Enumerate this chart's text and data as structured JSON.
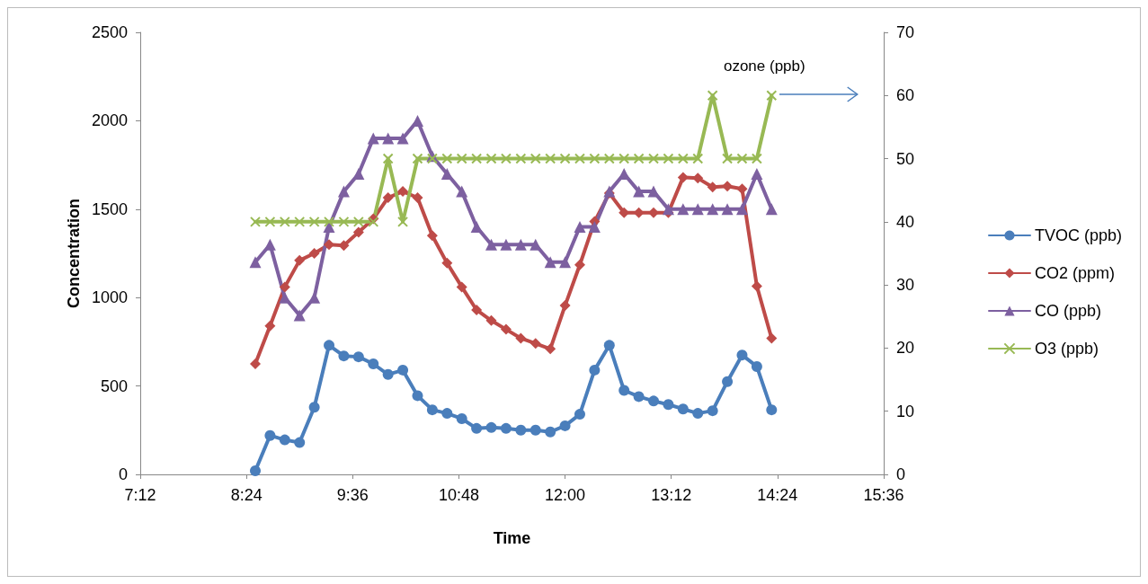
{
  "chart_data": {
    "type": "line",
    "xlabel": "Time",
    "ylabel": "Concentration",
    "x": [
      8.5,
      8.6667,
      8.8333,
      9.0,
      9.1667,
      9.3333,
      9.5,
      9.6667,
      9.8333,
      10.0,
      10.1667,
      10.3333,
      10.5,
      10.6667,
      10.8333,
      11.0,
      11.1667,
      11.3333,
      11.5,
      11.6667,
      11.8333,
      12.0,
      12.1667,
      12.3333,
      12.5,
      12.6667,
      12.8333,
      13.0,
      13.1667,
      13.3333,
      13.5,
      13.6667,
      13.8333,
      14.0,
      14.1667,
      14.3333
    ],
    "series": [
      {
        "name": "TVOC (ppb)",
        "color": "#4a7ebb",
        "marker": "circle",
        "values": [
          20,
          220,
          195,
          180,
          380,
          730,
          670,
          665,
          625,
          565,
          590,
          445,
          365,
          345,
          315,
          260,
          265,
          260,
          250,
          250,
          240,
          275,
          340,
          590,
          730,
          475,
          440,
          415,
          395,
          370,
          345,
          360,
          525,
          675,
          610,
          365
        ]
      },
      {
        "name": "CO2 (ppm)",
        "color": "#be4b48",
        "marker": "diamond",
        "values": [
          625,
          840,
          1060,
          1210,
          1250,
          1300,
          1295,
          1370,
          1445,
          1565,
          1600,
          1565,
          1350,
          1195,
          1060,
          930,
          870,
          820,
          770,
          740,
          710,
          955,
          1185,
          1430,
          1590,
          1480,
          1480,
          1480,
          1480,
          1680,
          1675,
          1625,
          1630,
          1615,
          1065,
          770
        ]
      },
      {
        "name": "CO (ppb)",
        "color": "#7d60a0",
        "marker": "triangle",
        "values": [
          1200,
          1300,
          1000,
          900,
          1000,
          1400,
          1600,
          1700,
          1900,
          1900,
          1900,
          2000,
          1800,
          1700,
          1600,
          1400,
          1300,
          1300,
          1300,
          1300,
          1200,
          1200,
          1400,
          1400,
          1600,
          1700,
          1600,
          1600,
          1500,
          1500,
          1500,
          1500,
          1500,
          1500,
          1700,
          1500
        ]
      },
      {
        "name": "O3 (ppb)",
        "color": "#98b954",
        "marker": "cross",
        "axis": "y2",
        "values": [
          40,
          40,
          40,
          40,
          40,
          40,
          40,
          40,
          40,
          50,
          40,
          50,
          50,
          50,
          50,
          50,
          50,
          50,
          50,
          50,
          50,
          50,
          50,
          50,
          50,
          50,
          50,
          50,
          50,
          50,
          50,
          60,
          50,
          50,
          50,
          60
        ]
      }
    ],
    "xlim": [
      7.2,
      15.6
    ],
    "xticks": [
      {
        "value": 7.2,
        "label": "7:12"
      },
      {
        "value": 8.4,
        "label": "8:24"
      },
      {
        "value": 9.6,
        "label": "9:36"
      },
      {
        "value": 10.8,
        "label": "10:48"
      },
      {
        "value": 12.0,
        "label": "12:00"
      },
      {
        "value": 13.2,
        "label": "13:12"
      },
      {
        "value": 14.4,
        "label": "14:24"
      },
      {
        "value": 15.6,
        "label": "15:36"
      }
    ],
    "ylim": [
      0,
      2500
    ],
    "yticks": [
      0,
      500,
      1000,
      1500,
      2000,
      2500
    ],
    "y2lim": [
      0,
      70
    ],
    "y2ticks": [
      0,
      10,
      20,
      30,
      40,
      50,
      60,
      70
    ],
    "annotations": [
      "ozone (ppb)"
    ],
    "grid": false,
    "legend": "right"
  }
}
